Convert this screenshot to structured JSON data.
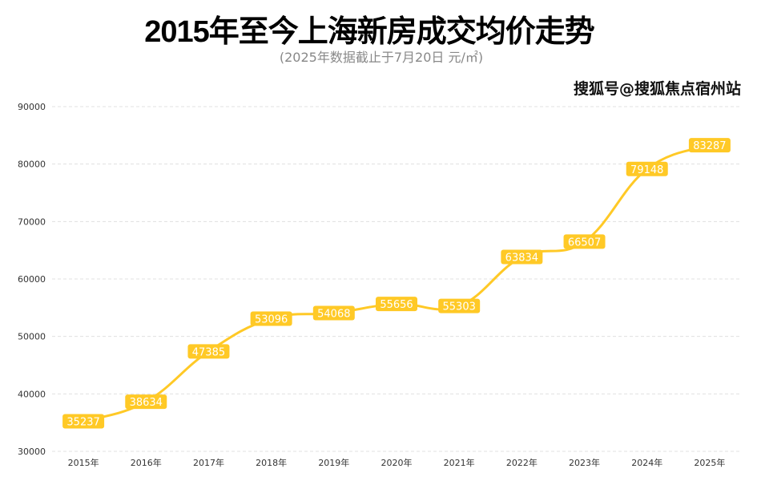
{
  "chart_data": {
    "type": "line",
    "title": "2015年至今上海新房成交均价走势",
    "subtitle": "(2025年数据截止于7月20日  元/㎡)",
    "categories": [
      "2015年",
      "2016年",
      "2017年",
      "2018年",
      "2019年",
      "2020年",
      "2021年",
      "2022年",
      "2023年",
      "2024年",
      "2025年"
    ],
    "series": [
      {
        "values": [
          35237,
          38634,
          47385,
          53096,
          54068,
          55656,
          55303,
          63834,
          66507,
          79148,
          83287
        ]
      }
    ],
    "ylim": [
      30000,
      90000
    ],
    "yticks": [
      30000,
      40000,
      50000,
      60000,
      70000,
      80000,
      90000
    ],
    "grid": true,
    "smooth": true,
    "data_labels": true,
    "colors": {
      "line": "#FFC926",
      "label_bg": "#FFC926",
      "label_text": "#ffffff",
      "grid": "#e0e0e0",
      "axis_text": "#333333"
    }
  },
  "watermark": "搜狐号@搜狐焦点宿州站"
}
